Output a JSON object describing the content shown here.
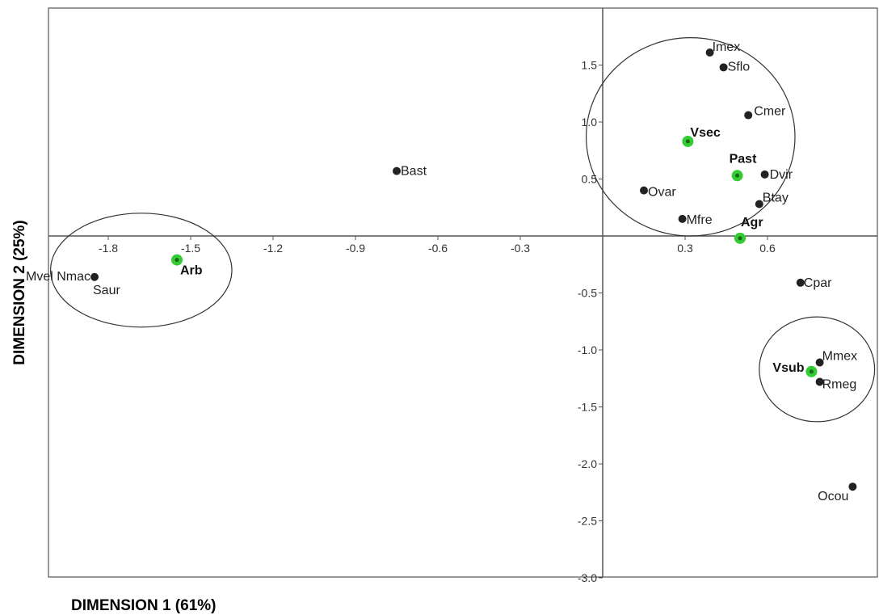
{
  "chart_data": {
    "type": "scatter",
    "xlabel": "DIMENSION 1 (61%)",
    "ylabel": "DIMENSION 2 (25%)",
    "xlim": [
      -2.02,
      0.96
    ],
    "ylim": [
      -3.0,
      2.0
    ],
    "xticks": [
      {
        "value": -1.8,
        "label": "-1.8"
      },
      {
        "value": -1.5,
        "label": "-1.5"
      },
      {
        "value": -1.2,
        "label": "-1.2"
      },
      {
        "value": -0.9,
        "label": "-0.9"
      },
      {
        "value": -0.6,
        "label": "-0.6"
      },
      {
        "value": -0.3,
        "label": "-0.3"
      },
      {
        "value": 0.3,
        "label": "0.3"
      },
      {
        "value": 0.6,
        "label": "0.6"
      }
    ],
    "yticks": [
      {
        "value": 1.5,
        "label": "1.5"
      },
      {
        "value": 1.0,
        "label": "1.0"
      },
      {
        "value": 0.5,
        "label": "0.5"
      },
      {
        "value": -0.5,
        "label": "-0.5"
      },
      {
        "value": -1.0,
        "label": "-1.0"
      },
      {
        "value": -1.5,
        "label": "-1.5"
      },
      {
        "value": -2.0,
        "label": "-2.0"
      },
      {
        "value": -2.5,
        "label": "-2.5"
      },
      {
        "value": -3.0,
        "label": "-3.0"
      }
    ],
    "grid": false,
    "series": [
      {
        "color": "#222222",
        "points": [
          {
            "label": "Imex",
            "x": 0.39,
            "y": 1.61
          },
          {
            "label": "Sflo",
            "x": 0.44,
            "y": 1.48
          },
          {
            "label": "Cmer",
            "x": 0.53,
            "y": 1.06
          },
          {
            "label": "Dvir",
            "x": 0.59,
            "y": 0.54
          },
          {
            "label": "Btay",
            "x": 0.57,
            "y": 0.28
          },
          {
            "label": "Ovar",
            "x": 0.15,
            "y": 0.4
          },
          {
            "label": "Mfre",
            "x": 0.29,
            "y": 0.15
          },
          {
            "label": "Bast",
            "x": -0.75,
            "y": 0.57
          },
          {
            "label": "Mvel Nmac",
            "sublabel": "Saur",
            "x": -1.85,
            "y": -0.36
          },
          {
            "label": "Cpar",
            "x": 0.72,
            "y": -0.41
          },
          {
            "label": "Mmex",
            "x": 0.79,
            "y": -1.11
          },
          {
            "label": "Rmeg",
            "x": 0.79,
            "y": -1.28
          },
          {
            "label": "Ocou",
            "x": 0.91,
            "y": -2.2
          }
        ]
      },
      {
        "color": "#33cc33",
        "points": [
          {
            "label": "Vsec",
            "x": 0.31,
            "y": 0.83
          },
          {
            "label": "Past",
            "x": 0.49,
            "y": 0.53
          },
          {
            "label": "Agr",
            "x": 0.5,
            "y": -0.02
          },
          {
            "label": "Arb",
            "x": -1.55,
            "y": -0.21
          },
          {
            "label": "Vsub",
            "x": 0.76,
            "y": -1.19
          }
        ]
      }
    ],
    "groups": [
      {
        "cx": 0.32,
        "cy": 0.87,
        "rx": 0.38,
        "ry": 0.87
      },
      {
        "cx": -1.68,
        "cy": -0.3,
        "rx": 0.33,
        "ry": 0.5
      },
      {
        "cx": 0.78,
        "cy": -1.17,
        "rx": 0.21,
        "ry": 0.46
      }
    ]
  }
}
